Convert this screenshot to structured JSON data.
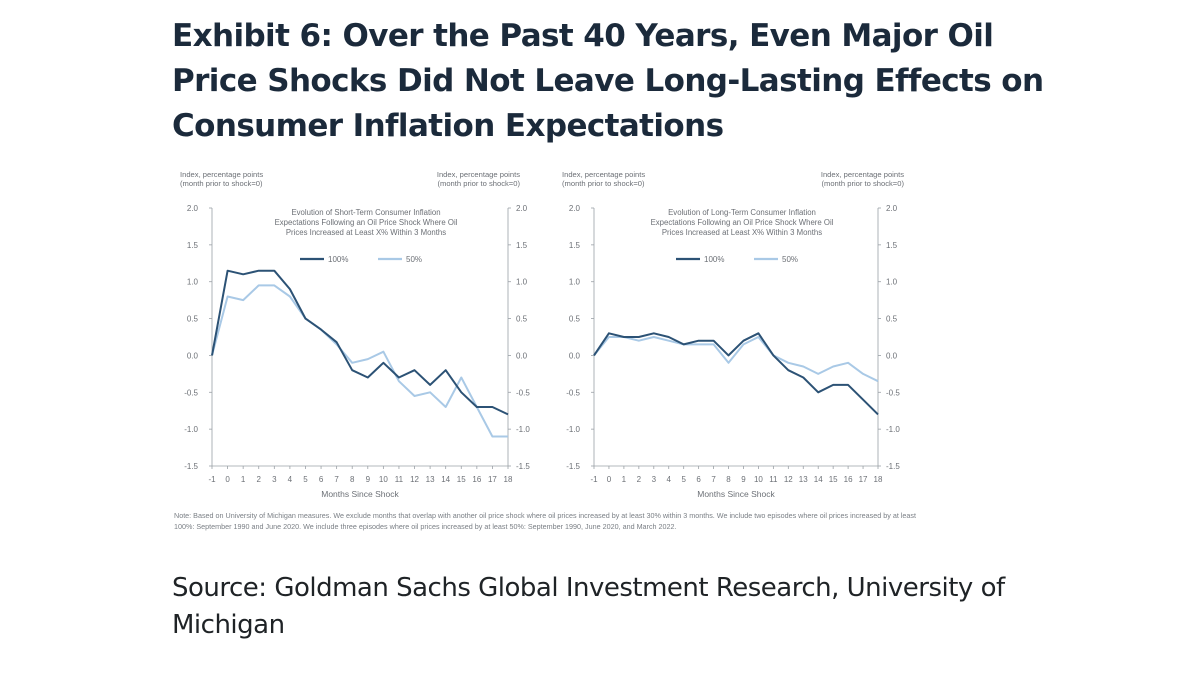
{
  "headline": "Exhibit 6: Over the Past 40 Years, Even Major Oil Price Shocks Did Not Leave Long-Lasting Effects on Consumer Inflation Expectations",
  "note": "Note: Based on University of Michigan measures. We exclude months that overlap with another oil price shock where oil prices increased by at least 30% within 3 months. We include two episodes where oil prices increased by at least 100%: September 1990 and June 2020. We include three episodes where oil prices increased by at least 50%: September 1990, June 2020, and March 2022.",
  "source": "Source: Goldman Sachs Global Investment Research, University of Michigan",
  "colors": {
    "dark": "#2c5275",
    "light": "#a9c9e6",
    "axis": "#9aa0a6"
  },
  "chart_data": [
    {
      "type": "line",
      "title": [
        "Evolution of Short-Term Consumer Inflation",
        "Expectations Following an Oil Price Shock Where Oil",
        "Prices Increased at Least X% Within 3 Months"
      ],
      "left_unit": [
        "Index, percentage points",
        "(month prior to shock=0)"
      ],
      "right_unit": [
        "Index, percentage points",
        "(month prior to shock=0)"
      ],
      "xlabel": "Months Since Shock",
      "x": [
        -1,
        0,
        1,
        2,
        3,
        4,
        5,
        6,
        7,
        8,
        9,
        10,
        11,
        12,
        13,
        14,
        15,
        16,
        17,
        18
      ],
      "xticklabels": [
        "-1",
        "0",
        "1",
        "2",
        "3",
        "4",
        "5",
        "6",
        "7",
        "8",
        "9",
        "10",
        "11",
        "12",
        "13",
        "14",
        "15",
        "16",
        "17",
        "18"
      ],
      "ylim": [
        -1.5,
        2.0
      ],
      "yticks": [
        "2.0",
        "1.5",
        "1.0",
        "0.5",
        "0.0",
        "-0.5",
        "-1.0",
        "-1.5"
      ],
      "legend_placement": "top-center",
      "series": [
        {
          "name": "100%",
          "color": "#2c5275",
          "values": [
            0.0,
            1.15,
            1.1,
            1.15,
            1.15,
            0.9,
            0.5,
            0.35,
            0.18,
            -0.2,
            -0.3,
            -0.1,
            -0.3,
            -0.2,
            -0.4,
            -0.2,
            -0.5,
            -0.7,
            -0.7,
            -0.8
          ]
        },
        {
          "name": "50%",
          "color": "#a9c9e6",
          "values": [
            0.0,
            0.8,
            0.75,
            0.95,
            0.95,
            0.8,
            0.5,
            0.35,
            0.15,
            -0.1,
            -0.05,
            0.05,
            -0.35,
            -0.55,
            -0.5,
            -0.7,
            -0.3,
            -0.7,
            -1.1,
            -1.1
          ]
        }
      ]
    },
    {
      "type": "line",
      "title": [
        "Evolution of Long-Term Consumer Inflation",
        "Expectations Following an Oil Price Shock Where Oil",
        "Prices Increased at Least X% Within 3 Months"
      ],
      "left_unit": [
        "Index, percentage points",
        "(month prior to shock=0)"
      ],
      "right_unit": [
        "Index, percentage points",
        "(month prior to shock=0)"
      ],
      "xlabel": "Months Since Shock",
      "x": [
        -1,
        0,
        1,
        2,
        3,
        4,
        5,
        6,
        7,
        8,
        9,
        10,
        11,
        12,
        13,
        14,
        15,
        16,
        17,
        18
      ],
      "xticklabels": [
        "-1",
        "0",
        "1",
        "2",
        "3",
        "4",
        "5",
        "6",
        "7",
        "8",
        "9",
        "10",
        "11",
        "12",
        "13",
        "14",
        "15",
        "16",
        "17",
        "18"
      ],
      "ylim": [
        -1.5,
        2.0
      ],
      "yticks": [
        "2.0",
        "1.5",
        "1.0",
        "0.5",
        "0.0",
        "-0.5",
        "-1.0",
        "-1.5"
      ],
      "legend_placement": "top-center",
      "series": [
        {
          "name": "100%",
          "color": "#2c5275",
          "values": [
            0.0,
            0.3,
            0.25,
            0.25,
            0.3,
            0.25,
            0.15,
            0.2,
            0.2,
            0.0,
            0.2,
            0.3,
            0.0,
            -0.2,
            -0.3,
            -0.5,
            -0.4,
            -0.4,
            -0.6,
            -0.8
          ]
        },
        {
          "name": "50%",
          "color": "#a9c9e6",
          "values": [
            0.0,
            0.25,
            0.25,
            0.2,
            0.25,
            0.2,
            0.15,
            0.15,
            0.15,
            -0.1,
            0.15,
            0.25,
            0.0,
            -0.1,
            -0.15,
            -0.25,
            -0.15,
            -0.1,
            -0.25,
            -0.35
          ]
        }
      ]
    }
  ]
}
